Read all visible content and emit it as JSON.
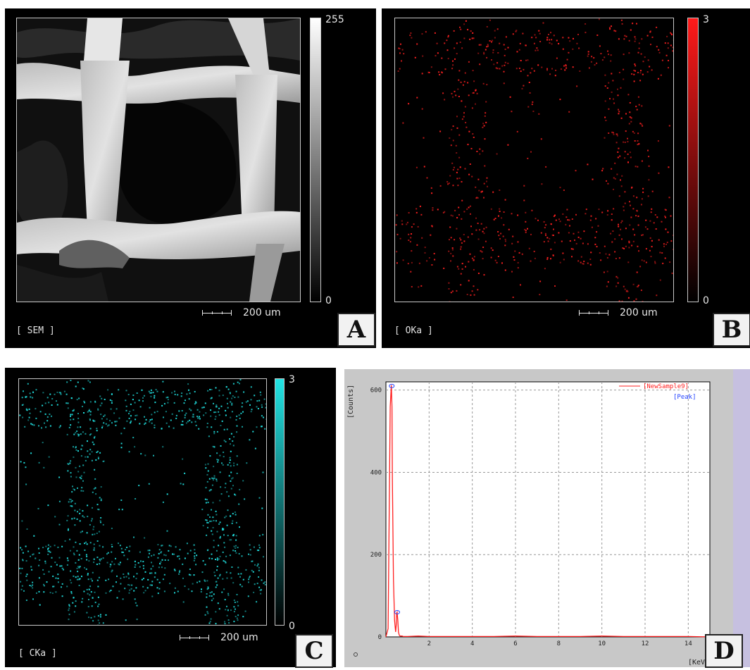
{
  "panels": {
    "a": {
      "letter": "A",
      "label": "[ SEM ]",
      "scale_max": "255",
      "scale_min": "0",
      "scalebar": "200 um",
      "colormap": [
        "#000000",
        "#ffffff"
      ]
    },
    "b": {
      "letter": "B",
      "label": "[ OKa ]",
      "scale_max": "3",
      "scale_min": "0",
      "scalebar": "200 um",
      "color": "#ff2020"
    },
    "c": {
      "letter": "C",
      "label": "[ CKa ]",
      "scale_max": "3",
      "scale_min": "0",
      "scalebar": "200 um",
      "color": "#20e0e0"
    },
    "d": {
      "letter": "D"
    }
  },
  "chart_data": {
    "type": "line",
    "xlabel": "[KeV]",
    "ylabel": "[Counts]",
    "xlim": [
      0,
      15
    ],
    "ylim": [
      0,
      620
    ],
    "xticks": [
      2,
      4,
      6,
      8,
      10,
      12,
      14
    ],
    "yticks": [
      0,
      200,
      400,
      600
    ],
    "grid": true,
    "legend_position": "top-right",
    "series": [
      {
        "name": "[NewSample9]",
        "color": "#ff2020",
        "x": [
          0.0,
          0.1,
          0.2,
          0.25,
          0.28,
          0.3,
          0.35,
          0.4,
          0.45,
          0.48,
          0.5,
          0.52,
          0.55,
          0.58,
          0.62,
          0.66,
          0.7,
          0.75,
          0.8,
          1.0,
          1.5,
          2,
          3,
          4,
          5,
          6,
          7,
          8,
          9,
          10,
          11,
          12,
          13,
          14,
          15
        ],
        "y": [
          0,
          20,
          560,
          612,
          560,
          380,
          140,
          40,
          12,
          30,
          58,
          60,
          40,
          12,
          4,
          2,
          2,
          2,
          1,
          1,
          2,
          1,
          1,
          1,
          1,
          2,
          1,
          1,
          1,
          2,
          1,
          1,
          1,
          1,
          0
        ]
      }
    ],
    "peaks_label": "[Peak]",
    "peaks": [
      {
        "x": 0.27,
        "y": 610
      },
      {
        "x": 0.52,
        "y": 60
      }
    ]
  }
}
